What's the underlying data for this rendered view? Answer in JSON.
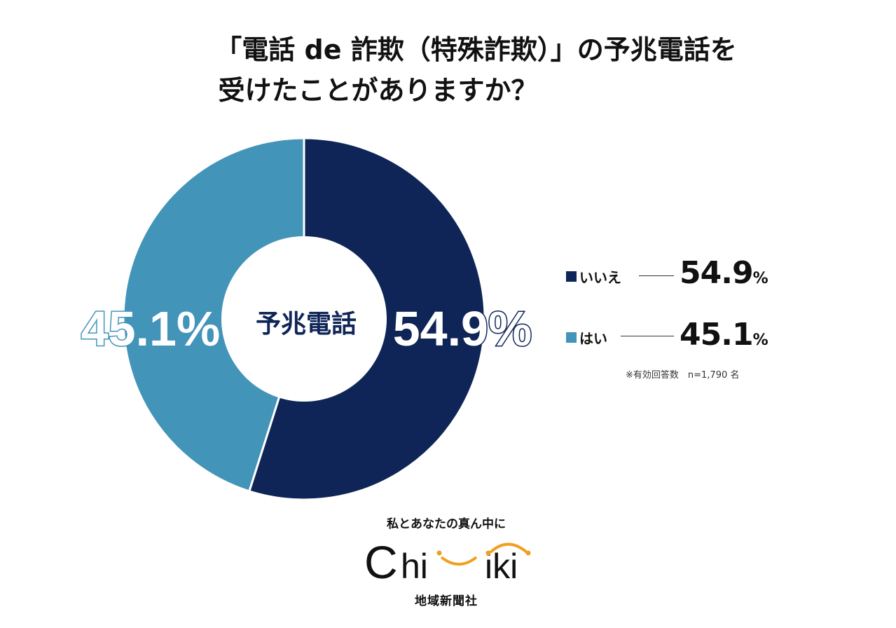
{
  "title_line1": "「電話 de 詐欺（特殊詐欺）」の予兆電話を",
  "title_line2": "受けたことがありますか？",
  "chart_data": {
    "type": "pie",
    "donut": true,
    "center_label": "予兆電話",
    "categories": [
      "いいえ",
      "はい"
    ],
    "values": [
      54.9,
      45.1
    ],
    "unit": "%",
    "colors": [
      "#0f2557",
      "#4394b9"
    ],
    "legend_placement": "right",
    "data_labels": [
      "54.9%",
      "45.1%"
    ]
  },
  "legend": [
    {
      "label": "いいえ",
      "value_main": "54.9",
      "value_unit": "%",
      "color": "#0f2557"
    },
    {
      "label": "はい",
      "value_main": "45.1",
      "value_unit": "%",
      "color": "#4394b9"
    }
  ],
  "note": "※有効回答数　n=1,790 名",
  "logo": {
    "tagline": "私とあなたの真ん中に",
    "wordmark": "Chiiki",
    "company": "地域新聞社",
    "accent": "#f0a020"
  }
}
